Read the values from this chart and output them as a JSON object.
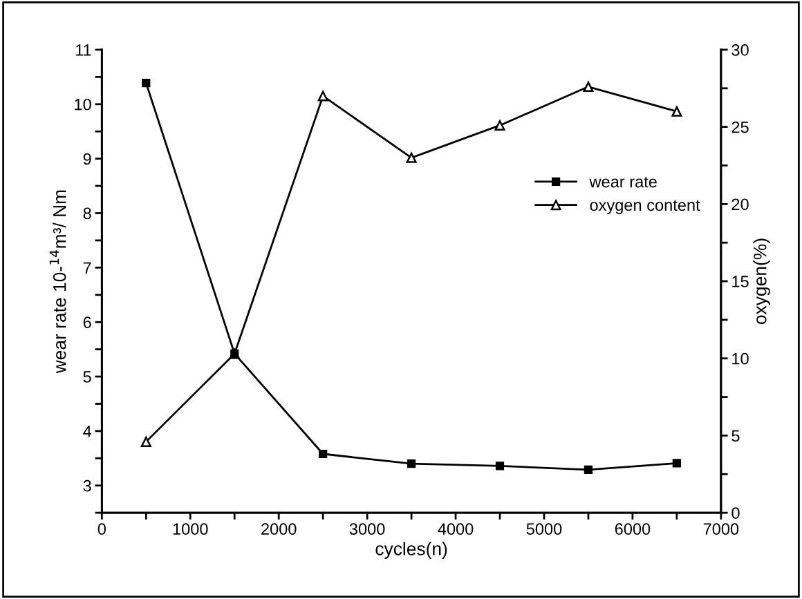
{
  "chart_data": {
    "type": "line",
    "xlabel": "cycles(n)",
    "ylabel": "wear rate 10-$^{14}$m³/ Nm",
    "y2label": "oxygen(%)",
    "x": [
      500,
      1500,
      2500,
      3500,
      4500,
      5500,
      6500
    ],
    "series": [
      {
        "name": "wear rate",
        "color": "#000000",
        "marker": "square",
        "values": [
          10.39,
          5.42,
          3.58,
          3.4,
          3.36,
          3.29,
          3.41
        ]
      },
      {
        "name": "oxygen content",
        "color": "#000000",
        "marker": "triangle",
        "axis": "y2",
        "values": [
          4.6,
          10.3,
          27.0,
          23.0,
          25.1,
          27.6,
          26.0
        ]
      }
    ],
    "xlim": [
      0,
      7000
    ],
    "xticks": [
      0,
      {
        "value": 500,
        "label": null
      },
      1000,
      {
        "value": 1500,
        "label": null
      },
      2000,
      {
        "value": 2500,
        "label": null
      },
      3000,
      {
        "value": 3500,
        "label": null
      },
      4000,
      {
        "value": 4500,
        "label": null
      },
      5000,
      {
        "value": 5500,
        "label": null
      },
      6000,
      {
        "value": 6500,
        "label": null
      },
      7000
    ],
    "ylim": [
      2.5,
      11
    ],
    "yticks": [
      {
        "value": 2.5,
        "label": null
      },
      3,
      {
        "value": 3.5,
        "label": null
      },
      4,
      {
        "value": 4.5,
        "label": null
      },
      5,
      {
        "value": 5.5,
        "label": null
      },
      6,
      {
        "value": 6.5,
        "label": null
      },
      7,
      {
        "value": 7.5,
        "label": null
      },
      8,
      {
        "value": 8.5,
        "label": null
      },
      9,
      {
        "value": 9.5,
        "label": null
      },
      10,
      {
        "value": 10.5,
        "label": null
      },
      11
    ],
    "y2lim": [
      0,
      30
    ],
    "y2ticks": [
      0,
      {
        "value": 2.5,
        "label": null
      },
      5,
      {
        "value": 7.5,
        "label": null
      },
      10,
      {
        "value": 12.5,
        "label": null
      },
      15,
      {
        "value": 17.5,
        "label": null
      },
      20,
      {
        "value": 22.5,
        "label": null
      },
      25,
      {
        "value": 27.5,
        "label": null
      },
      30
    ],
    "grid": false,
    "legend": "top right",
    "line_style": "solid"
  }
}
